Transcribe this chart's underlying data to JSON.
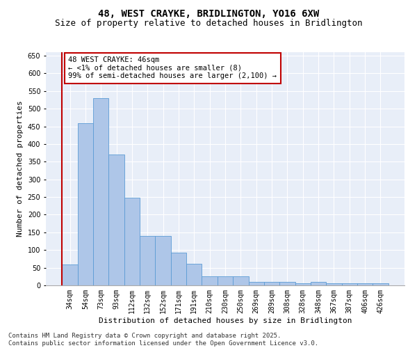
{
  "title_line1": "48, WEST CRAYKE, BRIDLINGTON, YO16 6XW",
  "title_line2": "Size of property relative to detached houses in Bridlington",
  "xlabel": "Distribution of detached houses by size in Bridlington",
  "ylabel": "Number of detached properties",
  "categories": [
    "34sqm",
    "54sqm",
    "73sqm",
    "93sqm",
    "112sqm",
    "132sqm",
    "152sqm",
    "171sqm",
    "191sqm",
    "210sqm",
    "230sqm",
    "250sqm",
    "269sqm",
    "289sqm",
    "308sqm",
    "328sqm",
    "348sqm",
    "367sqm",
    "387sqm",
    "406sqm",
    "426sqm"
  ],
  "values": [
    60,
    460,
    530,
    370,
    248,
    140,
    140,
    92,
    62,
    25,
    25,
    25,
    10,
    10,
    10,
    6,
    10,
    5,
    5,
    5,
    5
  ],
  "bar_color": "#aec6e8",
  "bar_edge_color": "#5b9bd5",
  "highlight_bar_index": 0,
  "highlight_color": "#c00000",
  "annotation_line1": "48 WEST CRAYKE: 46sqm",
  "annotation_line2": "← <1% of detached houses are smaller (8)",
  "annotation_line3": "99% of semi-detached houses are larger (2,100) →",
  "annotation_box_color": "#c00000",
  "ylim": [
    0,
    660
  ],
  "yticks": [
    0,
    50,
    100,
    150,
    200,
    250,
    300,
    350,
    400,
    450,
    500,
    550,
    600,
    650
  ],
  "background_color": "#e8eef8",
  "footer_line1": "Contains HM Land Registry data © Crown copyright and database right 2025.",
  "footer_line2": "Contains public sector information licensed under the Open Government Licence v3.0.",
  "title_fontsize": 10,
  "subtitle_fontsize": 9,
  "axis_label_fontsize": 8,
  "tick_fontsize": 7,
  "annotation_fontsize": 7.5,
  "footer_fontsize": 6.5
}
